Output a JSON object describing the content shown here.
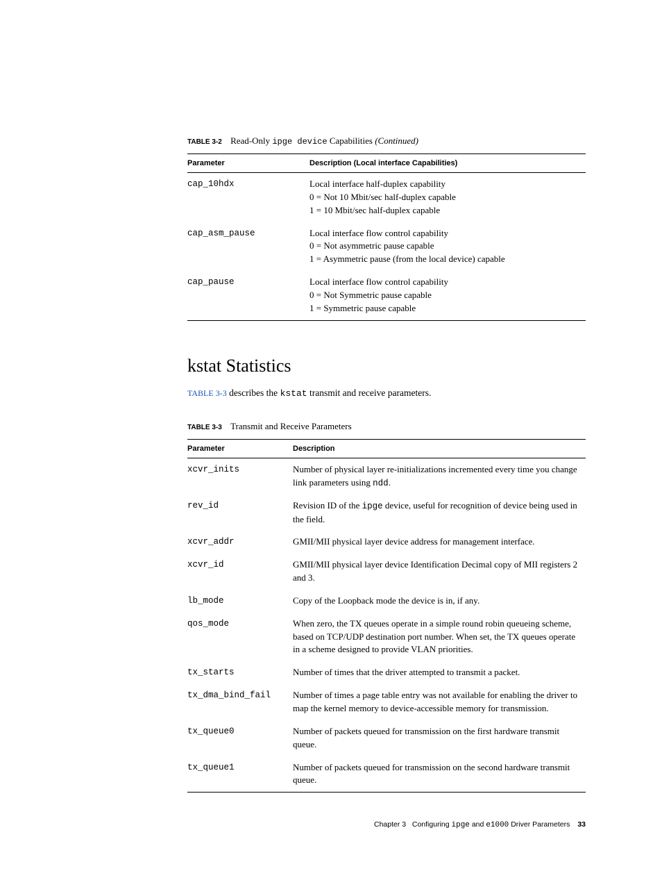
{
  "table32": {
    "caption_label": "TABLE 3-2",
    "caption_prefix": "Read-Only ",
    "caption_code": "ipge device",
    "caption_suffix": " Capabilities ",
    "caption_continued": "(Continued)",
    "headers": {
      "param": "Parameter",
      "desc": "Description (Local interface Capabilities)"
    },
    "rows": [
      {
        "param": "cap_10hdx",
        "lines": [
          "Local interface half-duplex capability",
          "0 = Not 10 Mbit/sec half-duplex capable",
          "1 = 10 Mbit/sec half-duplex capable"
        ]
      },
      {
        "param": "cap_asm_pause",
        "lines": [
          "Local interface flow control capability",
          "0 = Not asymmetric pause capable",
          "1 = Asymmetric pause (from the local device) capable"
        ]
      },
      {
        "param": "cap_pause",
        "lines": [
          "Local interface flow control capability",
          "0 = Not Symmetric pause capable",
          "1 = Symmetric pause capable"
        ]
      }
    ]
  },
  "section": {
    "heading": "kstat Statistics",
    "intro_link": "TABLE 3-3",
    "intro_mid": " describes the ",
    "intro_code": "kstat",
    "intro_end": " transmit and receive parameters."
  },
  "table33": {
    "caption_label": "TABLE 3-3",
    "caption_title": "Transmit and Receive Parameters",
    "headers": {
      "param": "Parameter",
      "desc": "Description"
    },
    "rows": [
      {
        "param": "xcvr_inits",
        "desc_pre": "Number of physical layer re-initializations incremented every time you change link parameters using ",
        "desc_code": "ndd",
        "desc_post": "."
      },
      {
        "param": "rev_id",
        "desc_pre": "Revision ID of the ",
        "desc_code": "ipge",
        "desc_post": " device, useful for recognition of device being used in the field."
      },
      {
        "param": "xcvr_addr",
        "desc_pre": "GMII/MII physical layer device address for management interface.",
        "desc_code": "",
        "desc_post": ""
      },
      {
        "param": "xcvr_id",
        "desc_pre": "GMII/MII physical layer device Identification Decimal copy of MII registers 2 and 3.",
        "desc_code": "",
        "desc_post": ""
      },
      {
        "param": "lb_mode",
        "desc_pre": "Copy of the Loopback mode the device is in, if any.",
        "desc_code": "",
        "desc_post": ""
      },
      {
        "param": "qos_mode",
        "desc_pre": "When zero, the TX queues operate in a simple round robin queueing scheme, based on TCP/UDP destination port number. When set, the TX queues operate in a scheme designed to provide VLAN priorities.",
        "desc_code": "",
        "desc_post": ""
      },
      {
        "param": "tx_starts",
        "desc_pre": "Number of times that the driver attempted to transmit a packet.",
        "desc_code": "",
        "desc_post": ""
      },
      {
        "param": "tx_dma_bind_fail",
        "desc_pre": "Number of times a page table entry was not available for enabling the driver to map the kernel memory to device-accessible memory for transmission.",
        "desc_code": "",
        "desc_post": ""
      },
      {
        "param": "tx_queue0",
        "desc_pre": "Number of packets queued for transmission on the first hardware transmit queue.",
        "desc_code": "",
        "desc_post": ""
      },
      {
        "param": "tx_queue1",
        "desc_pre": "Number of packets queued for transmission on the second hardware transmit queue.",
        "desc_code": "",
        "desc_post": ""
      }
    ]
  },
  "footer": {
    "chapter": "Chapter 3",
    "title_pre": "Configuring ",
    "title_code1": "ipge",
    "title_mid": " and ",
    "title_code2": "e1000",
    "title_post": " Driver Parameters",
    "page": "33"
  }
}
